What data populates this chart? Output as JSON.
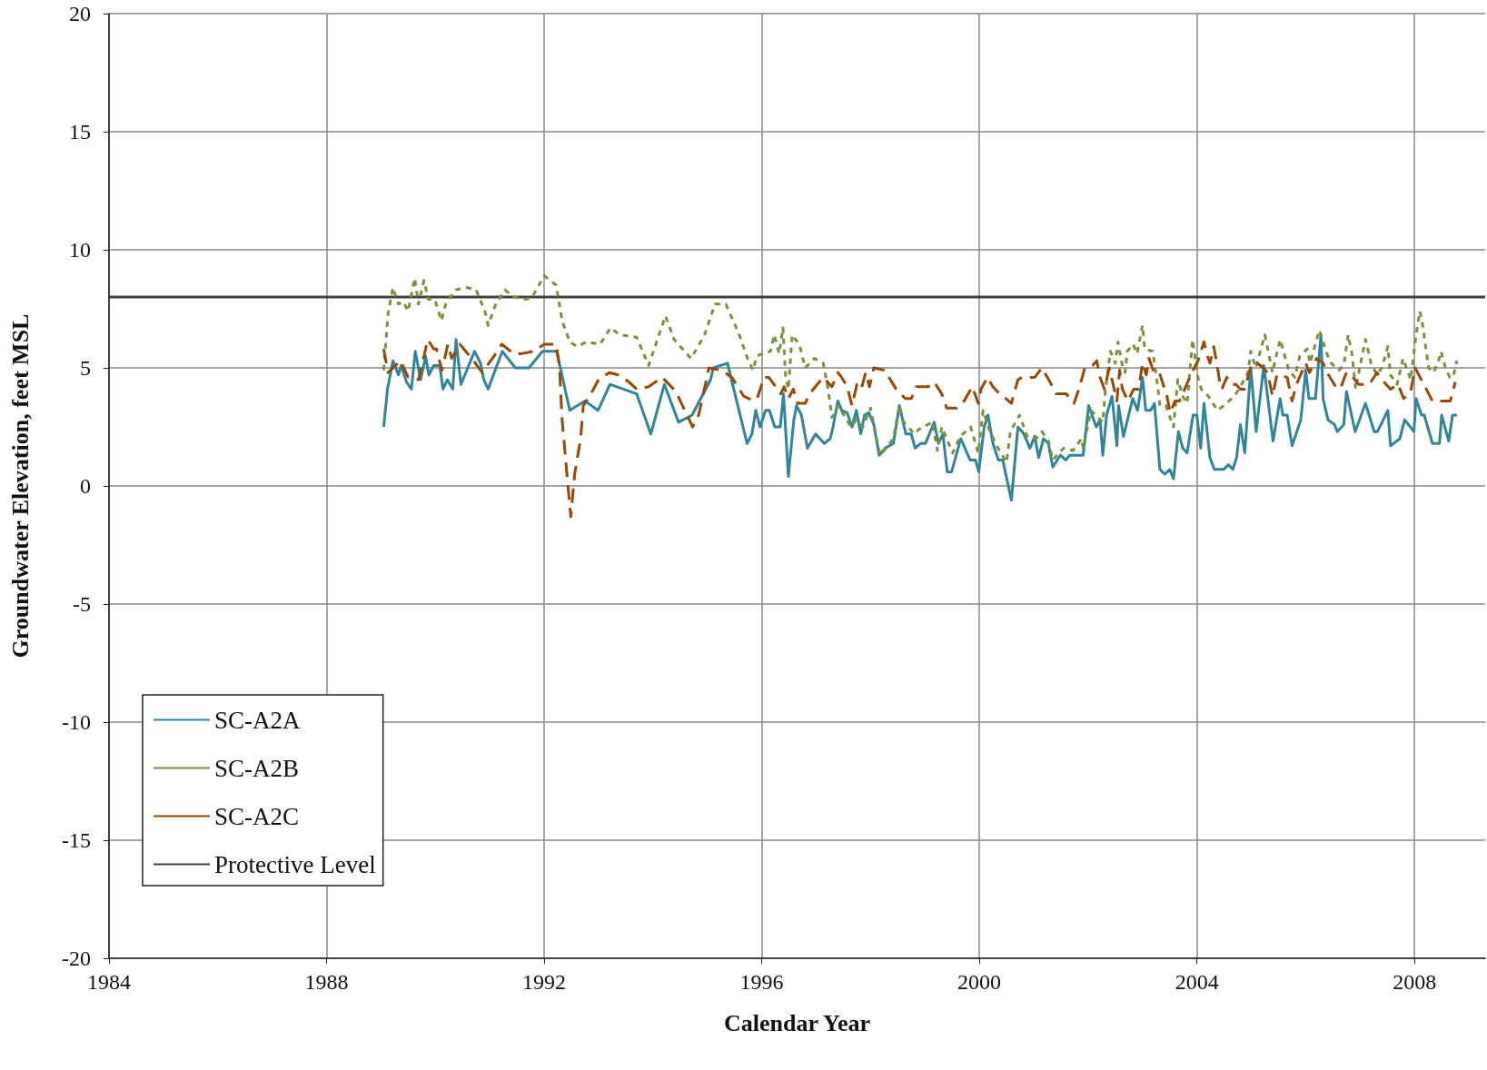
{
  "chart_data": {
    "type": "line",
    "xlabel": "Calendar Year",
    "ylabel": "Groundwater Elevation, feet MSL",
    "xlim": [
      1984,
      2009.3
    ],
    "xticks": [
      1984,
      1988,
      1992,
      1996,
      2000,
      2004,
      2008
    ],
    "ylim": [
      -20,
      20
    ],
    "yticks": [
      -20,
      -15,
      -10,
      -5,
      0,
      5,
      10,
      15,
      20
    ],
    "grid": true,
    "legend": "bottom left",
    "marker": "none",
    "ref_lines": [
      {
        "axis": "y",
        "value": 8,
        "label": "Protective Level",
        "color": "#404040",
        "line_style": "solid"
      }
    ],
    "series": [
      {
        "name": "SC-A2A",
        "color": "#31849b",
        "line_style": "solid",
        "x": [
          1989.05,
          1989.12,
          1989.22,
          1989.32,
          1989.37,
          1989.47,
          1989.56,
          1989.63,
          1989.73,
          1989.82,
          1989.88,
          1989.97,
          1990.08,
          1990.14,
          1990.22,
          1990.32,
          1990.38,
          1990.47,
          1990.72,
          1990.83,
          1990.89,
          1990.97,
          1991.23,
          1991.47,
          1991.72,
          1991.97,
          1992.23,
          1992.47,
          1992.75,
          1992.99,
          1993.21,
          1993.7,
          1993.96,
          1994.21,
          1994.47,
          1994.72,
          1995.06,
          1995.11,
          1995.37,
          1995.73,
          1995.82,
          1995.89,
          1995.97,
          1996.07,
          1996.14,
          1996.24,
          1996.34,
          1996.4,
          1996.49,
          1996.59,
          1996.64,
          1996.73,
          1996.84,
          1996.99,
          1997.15,
          1997.26,
          1997.31,
          1997.4,
          1997.47,
          1997.57,
          1997.66,
          1997.74,
          1997.82,
          1997.89,
          1997.97,
          1998.06,
          1998.16,
          1998.27,
          1998.42,
          1998.53,
          1998.65,
          1998.75,
          1998.82,
          1998.92,
          1999.01,
          1999.17,
          1999.25,
          1999.33,
          1999.41,
          1999.49,
          1999.66,
          1999.83,
          1999.93,
          1999.99,
          2000.09,
          2000.16,
          2000.25,
          2000.35,
          2000.43,
          2000.59,
          2000.71,
          2000.82,
          2000.93,
          2001.02,
          2001.09,
          2001.18,
          2001.27,
          2001.35,
          2001.49,
          2001.59,
          2001.66,
          2001.91,
          2002.01,
          2002.15,
          2002.22,
          2002.27,
          2002.34,
          2002.44,
          2002.53,
          2002.56,
          2002.65,
          2002.82,
          2002.91,
          2003,
          2003.06,
          2003.15,
          2003.22,
          2003.32,
          2003.41,
          2003.5,
          2003.57,
          2003.66,
          2003.74,
          2003.82,
          2003.93,
          2004,
          2004.07,
          2004.13,
          2004.24,
          2004.32,
          2004.49,
          2004.58,
          2004.66,
          2004.73,
          2004.8,
          2004.88,
          2004.99,
          2005.09,
          2005.23,
          2005.4,
          2005.53,
          2005.58,
          2005.66,
          2005.75,
          2005.91,
          2006,
          2006.06,
          2006.18,
          2006.28,
          2006.32,
          2006.41,
          2006.53,
          2006.58,
          2006.7,
          2006.75,
          2006.91,
          2007.1,
          2007.26,
          2007.32,
          2007.51,
          2007.56,
          2007.73,
          2007.82,
          2007.99,
          2008.03,
          2008.13,
          2008.18,
          2008.33,
          2008.46,
          2008.5,
          2008.63,
          2008.7,
          2008.78
        ],
        "values": [
          2.5,
          4.1,
          5.3,
          4.7,
          5.1,
          4.4,
          4.1,
          5.7,
          4.5,
          5.5,
          4.7,
          5.1,
          5.1,
          4.1,
          4.5,
          4.1,
          6.2,
          4.3,
          5.7,
          5.2,
          4.5,
          4.1,
          5.7,
          5,
          5,
          5.7,
          5.7,
          3.2,
          3.6,
          3.2,
          4.3,
          3.9,
          2.2,
          4.3,
          2.7,
          3,
          4.5,
          5,
          5.2,
          1.8,
          2.2,
          3.2,
          2.5,
          3.2,
          3.2,
          2.5,
          2.5,
          3.9,
          0.4,
          2.8,
          3.4,
          3,
          1.6,
          2.2,
          1.8,
          2,
          2.5,
          3.6,
          3.2,
          3.1,
          2.5,
          3.2,
          2.2,
          3,
          3.1,
          2.6,
          1.3,
          1.6,
          1.8,
          3.4,
          2.2,
          2.2,
          1.6,
          1.8,
          1.8,
          2.7,
          1.8,
          2.2,
          0.6,
          0.6,
          2,
          1.1,
          1.1,
          0.6,
          2.5,
          3,
          1.8,
          1.1,
          1.1,
          -0.6,
          2.5,
          2.2,
          1.6,
          2.1,
          1.2,
          2,
          1.8,
          0.8,
          1.3,
          1.1,
          1.3,
          1.3,
          3.4,
          2.5,
          2.8,
          1.3,
          3,
          3.8,
          1.7,
          3.4,
          2.1,
          3.7,
          3.2,
          4.6,
          3.2,
          3.2,
          3.5,
          0.7,
          0.5,
          0.7,
          0.3,
          2.3,
          1.6,
          1.4,
          3,
          3,
          1.6,
          3.5,
          1.2,
          0.7,
          0.7,
          0.9,
          0.7,
          1.2,
          2.6,
          1.4,
          5,
          2.3,
          5.1,
          1.9,
          3.7,
          3,
          3,
          1.7,
          2.8,
          4.9,
          3.7,
          3.7,
          6.4,
          3.7,
          2.8,
          2.6,
          2.3,
          2.6,
          4,
          2.3,
          3.5,
          2.3,
          2.3,
          3.2,
          1.7,
          2,
          2.8,
          2.3,
          3.7,
          3,
          3,
          1.8,
          1.8,
          3,
          1.9,
          3,
          3
        ]
      },
      {
        "name": "SC-A2B",
        "color": "#77933c",
        "line_style": "dotted",
        "x": [
          1989.05,
          1989.13,
          1989.22,
          1989.32,
          1989.41,
          1989.5,
          1989.62,
          1989.69,
          1989.79,
          1989.87,
          1989.99,
          1990.11,
          1990.19,
          1990.36,
          1990.58,
          1990.75,
          1990.91,
          1990.97,
          1991.11,
          1991.28,
          1991.44,
          1991.67,
          1991.78,
          1992,
          1992.22,
          1992.33,
          1992.47,
          1992.61,
          1992.78,
          1993.03,
          1993.22,
          1993.39,
          1993.7,
          1993.92,
          1994.23,
          1994.39,
          1994.7,
          1994.95,
          1995.14,
          1995.34,
          1995.57,
          1995.74,
          1995.84,
          1995.91,
          1996.02,
          1996.16,
          1996.23,
          1996.32,
          1996.39,
          1996.44,
          1996.49,
          1996.56,
          1996.69,
          1996.8,
          1996.97,
          1997.13,
          1997.22,
          1997.29,
          1997.41,
          1997.64,
          1997.74,
          1997.86,
          1998,
          1998.11,
          1998.18,
          1998.42,
          1998.53,
          1998.61,
          1998.81,
          1998.89,
          1999.14,
          1999.23,
          1999.31,
          1999.4,
          1999.51,
          1999.65,
          1999.84,
          1999.98,
          2000.07,
          2000.18,
          2000.32,
          2000.5,
          2000.57,
          2000.74,
          2000.88,
          2001.04,
          2001.15,
          2001.27,
          2001.35,
          2001.55,
          2001.72,
          2001.88,
          2001.91,
          2002.05,
          2002.27,
          2002.32,
          2002.41,
          2002.5,
          2002.55,
          2002.62,
          2002.68,
          2002.72,
          2002.83,
          2002.9,
          2003,
          2003.04,
          2003.19,
          2003.28,
          2003.32,
          2003.43,
          2003.57,
          2003.65,
          2003.74,
          2003.82,
          2003.92,
          2004.02,
          2004.08,
          2004.21,
          2004.38,
          2004.49,
          2004.69,
          2004.8,
          2004.94,
          2004.99,
          2005.08,
          2005.25,
          2005.39,
          2005.53,
          2005.69,
          2005.8,
          2005.89,
          2006.03,
          2006.08,
          2006.25,
          2006.39,
          2006.47,
          2006.61,
          2006.7,
          2006.78,
          2006.85,
          2006.92,
          2007.01,
          2007.1,
          2007.2,
          2007.31,
          2007.4,
          2007.51,
          2007.56,
          2007.68,
          2007.79,
          2007.93,
          2008.03,
          2008.1,
          2008.15,
          2008.26,
          2008.35,
          2008.43,
          2008.49,
          2008.57,
          2008.65,
          2008.71,
          2008.78
        ],
        "values": [
          4.9,
          7.3,
          8.4,
          7.7,
          7.8,
          7.4,
          8.8,
          7.7,
          8.7,
          7.9,
          7.9,
          7,
          7.7,
          8.3,
          8.4,
          8.3,
          7.4,
          6.8,
          7.7,
          8.3,
          8,
          7.9,
          8,
          8.9,
          8.5,
          7,
          6.1,
          5.9,
          6.1,
          6,
          6.7,
          6.4,
          6.3,
          5.1,
          7.2,
          6.2,
          5.4,
          6.4,
          7.7,
          7.7,
          6.5,
          5.4,
          4.9,
          5.5,
          5.6,
          5.7,
          6.4,
          5.6,
          6.7,
          4.6,
          4.1,
          6.4,
          6,
          5,
          5.4,
          5.2,
          4.1,
          2.9,
          3.4,
          2.5,
          2.8,
          2.5,
          3.3,
          2,
          1.3,
          2,
          3.4,
          2.7,
          2.2,
          2.4,
          2.7,
          1.5,
          2.5,
          2,
          1.4,
          2.1,
          2.5,
          1.4,
          3.2,
          2.4,
          1.7,
          1,
          2.3,
          3,
          2.1,
          2,
          2.3,
          1.9,
          1.1,
          1.6,
          1.5,
          2,
          1.6,
          3.2,
          2.7,
          4.1,
          5.7,
          5.2,
          6.1,
          5.2,
          4.8,
          5.7,
          6,
          5.6,
          6.8,
          5.8,
          5.7,
          4.2,
          3.4,
          3.4,
          2.5,
          4.5,
          3.8,
          3.5,
          6.2,
          4.6,
          4.1,
          3.8,
          3.2,
          3.4,
          3.8,
          4.2,
          4.8,
          5.7,
          5,
          6.4,
          4.8,
          6.2,
          4.9,
          4.6,
          5.5,
          5.8,
          5.2,
          6.6,
          5.6,
          5.2,
          4.9,
          5.1,
          6.4,
          5.6,
          4.1,
          5.2,
          6.2,
          5.2,
          4.7,
          5,
          5.9,
          4.7,
          4.3,
          5.4,
          4.5,
          6.4,
          7.4,
          6.8,
          5,
          4.8,
          5.2,
          5.7,
          5,
          4.6,
          4.6,
          5.3
        ]
      },
      {
        "name": "SC-A2C",
        "color": "#984807",
        "line_style": "dashed",
        "x": [
          1989.05,
          1989.13,
          1989.36,
          1989.5,
          1989.69,
          1989.77,
          1989.86,
          1989.97,
          1990.02,
          1990.12,
          1990.23,
          1990.3,
          1990.45,
          1990.67,
          1990.86,
          1991.08,
          1991.22,
          1991.44,
          1991.58,
          1991.81,
          1992,
          1992.22,
          1992.28,
          1992.33,
          1992.45,
          1992.49,
          1992.56,
          1992.67,
          1992.72,
          1992.86,
          1993,
          1993.2,
          1993.36,
          1993.56,
          1993.7,
          1993.92,
          1994.17,
          1994.42,
          1994.73,
          1994.84,
          1995.03,
          1995.26,
          1995.45,
          1995.67,
          1995.85,
          1995.93,
          1996.04,
          1996.13,
          1996.35,
          1996.41,
          1996.49,
          1996.58,
          1996.66,
          1996.8,
          1996.88,
          1997.02,
          1997.13,
          1997.29,
          1997.4,
          1997.47,
          1997.57,
          1997.66,
          1997.75,
          1997.83,
          1997.91,
          1997.98,
          1998.06,
          1998.26,
          1998.47,
          1998.64,
          1998.75,
          1998.84,
          1998.92,
          1999.06,
          1999.17,
          1999.31,
          1999.4,
          1999.59,
          1999.72,
          1999.87,
          1999.98,
          2000.03,
          2000.15,
          2000.25,
          2000.37,
          2000.49,
          2000.59,
          2000.71,
          2000.79,
          2000.88,
          2001.02,
          2001.15,
          2001.3,
          2001.41,
          2001.6,
          2001.74,
          2001.83,
          2001.94,
          2002.08,
          2002.16,
          2002.22,
          2002.3,
          2002.39,
          2002.53,
          2002.58,
          2002.63,
          2002.73,
          2002.84,
          2002.93,
          2003,
          2003.07,
          2003.12,
          2003.21,
          2003.31,
          2003.45,
          2003.51,
          2003.6,
          2003.68,
          2003.85,
          2003.95,
          2004.02,
          2004.13,
          2004.18,
          2004.24,
          2004.31,
          2004.38,
          2004.42,
          2004.46,
          2004.55,
          2004.63,
          2004.72,
          2004.8,
          2004.88,
          2004.96,
          2005.01,
          2005.11,
          2005.22,
          2005.3,
          2005.39,
          2005.47,
          2005.66,
          2005.75,
          2005.83,
          2006,
          2006.07,
          2006.2,
          2006.32,
          2006.42,
          2006.58,
          2006.65,
          2006.75,
          2006.84,
          2006.97,
          2007.17,
          2007.31,
          2007.4,
          2007.56,
          2007.7,
          2007.8,
          2007.93,
          2008.01,
          2008.15,
          2008.33,
          2008.59,
          2008.66,
          2008.75
        ],
        "values": [
          5.8,
          4.8,
          5.3,
          4.6,
          4.5,
          5.3,
          6.2,
          5.8,
          5.8,
          4.9,
          6,
          5.4,
          6,
          5.4,
          4.8,
          5.5,
          6,
          5.6,
          5.6,
          5.7,
          6,
          6,
          5.1,
          2.8,
          -0.3,
          -1.3,
          0.5,
          2,
          3.4,
          3.9,
          4.5,
          4.8,
          4.7,
          4.4,
          4.1,
          4.2,
          4.6,
          4,
          2.5,
          3,
          5,
          4.9,
          4.6,
          3.8,
          3.6,
          3.8,
          4.6,
          4.6,
          3.9,
          4.2,
          3.7,
          4.1,
          3.5,
          3.5,
          3.9,
          4.3,
          4.6,
          4.2,
          4.8,
          4.6,
          4.2,
          3.4,
          4.3,
          4.1,
          4.8,
          4.2,
          5,
          4.9,
          4.1,
          3.7,
          3.7,
          4.2,
          4.2,
          4.2,
          4.4,
          3.9,
          3.3,
          3.3,
          3.6,
          4.2,
          3.5,
          4.1,
          4.6,
          4.2,
          3.9,
          3.7,
          3.5,
          4.5,
          4.6,
          4.6,
          4.6,
          5,
          4.4,
          3.9,
          3.9,
          3.5,
          4.1,
          5,
          5.1,
          5.3,
          4.6,
          4.1,
          5,
          3.6,
          4.9,
          4.1,
          3.6,
          4.1,
          4.1,
          5.2,
          4.7,
          5.4,
          4.8,
          4.8,
          3.8,
          3.1,
          3.6,
          3.6,
          4.5,
          5,
          5.3,
          6.1,
          5.6,
          5.2,
          5.9,
          5,
          4.4,
          4.1,
          4.6,
          4.3,
          4.3,
          4.1,
          4.1,
          4.8,
          5.2,
          5.2,
          5,
          4.8,
          3.8,
          4.7,
          4.6,
          3.6,
          4.3,
          5.2,
          4.8,
          5.4,
          5.2,
          4.7,
          4.1,
          4.2,
          4.8,
          4.7,
          4.3,
          4.3,
          4.8,
          4.5,
          4.1,
          4.3,
          3.7,
          4,
          5,
          4.4,
          3.6,
          3.6,
          3.6,
          4.4
        ]
      }
    ]
  }
}
